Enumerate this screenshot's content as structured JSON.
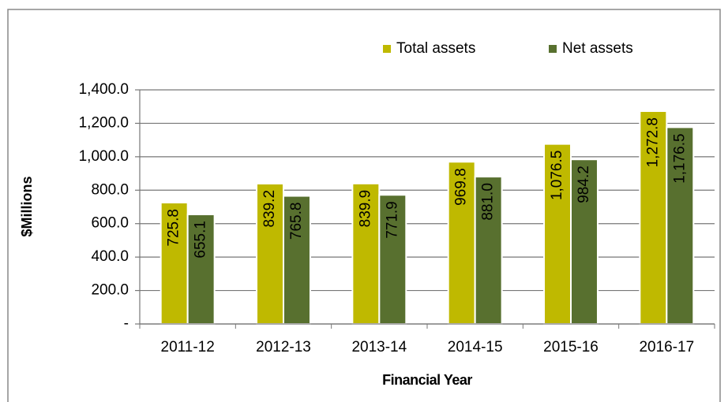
{
  "chart_data": {
    "type": "bar",
    "categories": [
      "2011-12",
      "2012-13",
      "2013-14",
      "2014-15",
      "2015-16",
      "2016-17"
    ],
    "series": [
      {
        "name": "Total assets",
        "color": "#bfb900",
        "values": [
          725.8,
          839.2,
          839.9,
          969.8,
          1076.5,
          1272.8
        ],
        "value_labels": [
          "725.8",
          "839.2",
          "839.9",
          "969.8",
          "1,076.5",
          "1,272.8"
        ]
      },
      {
        "name": "Net assets",
        "color": "#58702f",
        "values": [
          655.1,
          765.8,
          771.9,
          881.0,
          984.2,
          1176.5
        ],
        "value_labels": [
          "655.1",
          "765.8",
          "771.9",
          "881.0",
          "984.2",
          "1,176.5"
        ]
      }
    ],
    "ylabel": "$Millions",
    "xlabel": "Financial Year",
    "ylim": [
      0,
      1400
    ],
    "yticks": [
      {
        "value": 0,
        "label": "-"
      },
      {
        "value": 200,
        "label": "200.0"
      },
      {
        "value": 400,
        "label": "400.0"
      },
      {
        "value": 600,
        "label": "600.0"
      },
      {
        "value": 800,
        "label": "800.0"
      },
      {
        "value": 1000,
        "label": "1,000.0"
      },
      {
        "value": 1200,
        "label": "1,200.0"
      },
      {
        "value": 1400,
        "label": "1,400.0"
      }
    ],
    "grid": true,
    "legend": "top"
  }
}
